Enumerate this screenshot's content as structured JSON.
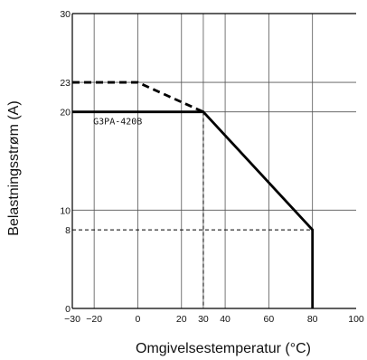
{
  "chart_data": {
    "type": "line",
    "title": "",
    "xlabel": "Omgivelsestemperatur (°C)",
    "ylabel": "Belastningsstrøm (A)",
    "xlim": [
      -30,
      100
    ],
    "ylim": [
      0,
      30
    ],
    "grid": true,
    "x_ticks": [
      {
        "value": -30,
        "label": "−30"
      },
      {
        "value": -20,
        "label": "−20"
      },
      {
        "value": 0,
        "label": "0"
      },
      {
        "value": 20,
        "label": "20"
      },
      {
        "value": 30,
        "label": "30"
      },
      {
        "value": 40,
        "label": "40"
      },
      {
        "value": 60,
        "label": "60"
      },
      {
        "value": 80,
        "label": "80"
      },
      {
        "value": 100,
        "label": "100"
      }
    ],
    "y_ticks": [
      {
        "value": 0,
        "label": "0"
      },
      {
        "value": 8,
        "label": "8"
      },
      {
        "value": 10,
        "label": "10"
      },
      {
        "value": 20,
        "label": "20"
      },
      {
        "value": 23,
        "label": "23"
      },
      {
        "value": 30,
        "label": "30"
      }
    ],
    "series": [
      {
        "name": "G3PA-420B",
        "style": "solid",
        "color": "#000000",
        "points": [
          [
            -30,
            20
          ],
          [
            30,
            20
          ],
          [
            80,
            8
          ],
          [
            80,
            0
          ]
        ]
      },
      {
        "style": "dashed",
        "color": "#000000",
        "points": [
          [
            -30,
            23
          ],
          [
            0,
            23
          ],
          [
            30,
            20
          ]
        ]
      }
    ],
    "reference_lines": [
      {
        "style": "dashed",
        "points": [
          [
            30,
            20
          ],
          [
            30,
            0
          ]
        ]
      },
      {
        "style": "dashed",
        "points": [
          [
            -30,
            8
          ],
          [
            80,
            8
          ]
        ]
      }
    ],
    "annotations": [
      {
        "text": "G3PA-420B",
        "x": -20,
        "y": 20
      }
    ]
  }
}
